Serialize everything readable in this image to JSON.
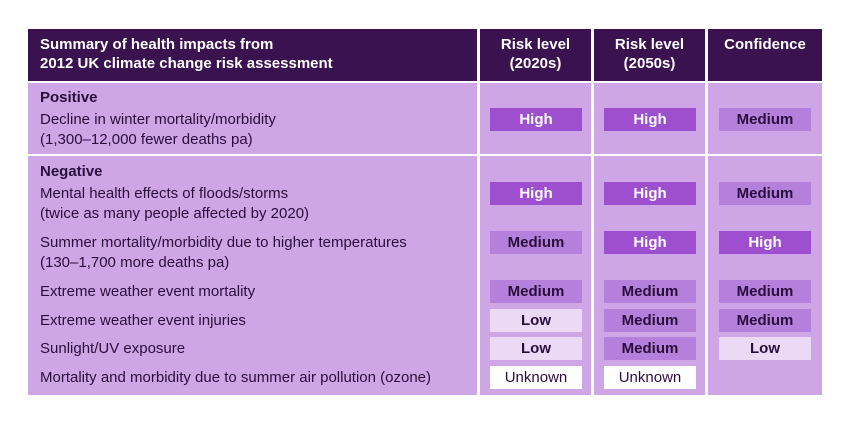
{
  "header": {
    "title_line1": "Summary of health impacts from",
    "title_line2": "2012 UK climate change risk assessment",
    "col1_line1": "Risk level",
    "col1_line2": "(2020s)",
    "col2_line1": "Risk level",
    "col2_line2": "(2050s)",
    "col3": "Confidence"
  },
  "sections": {
    "positive": "Positive",
    "negative": "Negative"
  },
  "rows": [
    {
      "line1": "Decline in winter mortality/morbidity",
      "line2": "(1,300–12,000 fewer deaths pa)",
      "r2020": "High",
      "r2050": "High",
      "conf": "Medium"
    },
    {
      "line1": "Mental health effects of floods/storms",
      "line2": "(twice as many people affected by 2020)",
      "r2020": "High",
      "r2050": "High",
      "conf": "Medium"
    },
    {
      "line1": "Summer mortality/morbidity due to higher temperatures",
      "line2": "(130–1,700 more deaths pa)",
      "r2020": "Medium",
      "r2050": "High",
      "conf": "High"
    },
    {
      "line1": "Extreme weather event mortality",
      "r2020": "Medium",
      "r2050": "Medium",
      "conf": "Medium"
    },
    {
      "line1": "Extreme weather event injuries",
      "r2020": "Low",
      "r2050": "Medium",
      "conf": "Medium"
    },
    {
      "line1": "Sunlight/UV exposure",
      "r2020": "Low",
      "r2050": "Medium",
      "conf": "Low"
    },
    {
      "line1": "Mortality and morbidity due to summer air pollution (ozone)",
      "r2020": "Unknown",
      "r2050": "Unknown"
    }
  ],
  "colors": {
    "header_bg": "#3b1250",
    "body_bg": "#cea6e6",
    "high": "#9e4fd0",
    "medium": "#b57fdc",
    "low": "#ecd9f5",
    "unknown": "#ffffff"
  }
}
